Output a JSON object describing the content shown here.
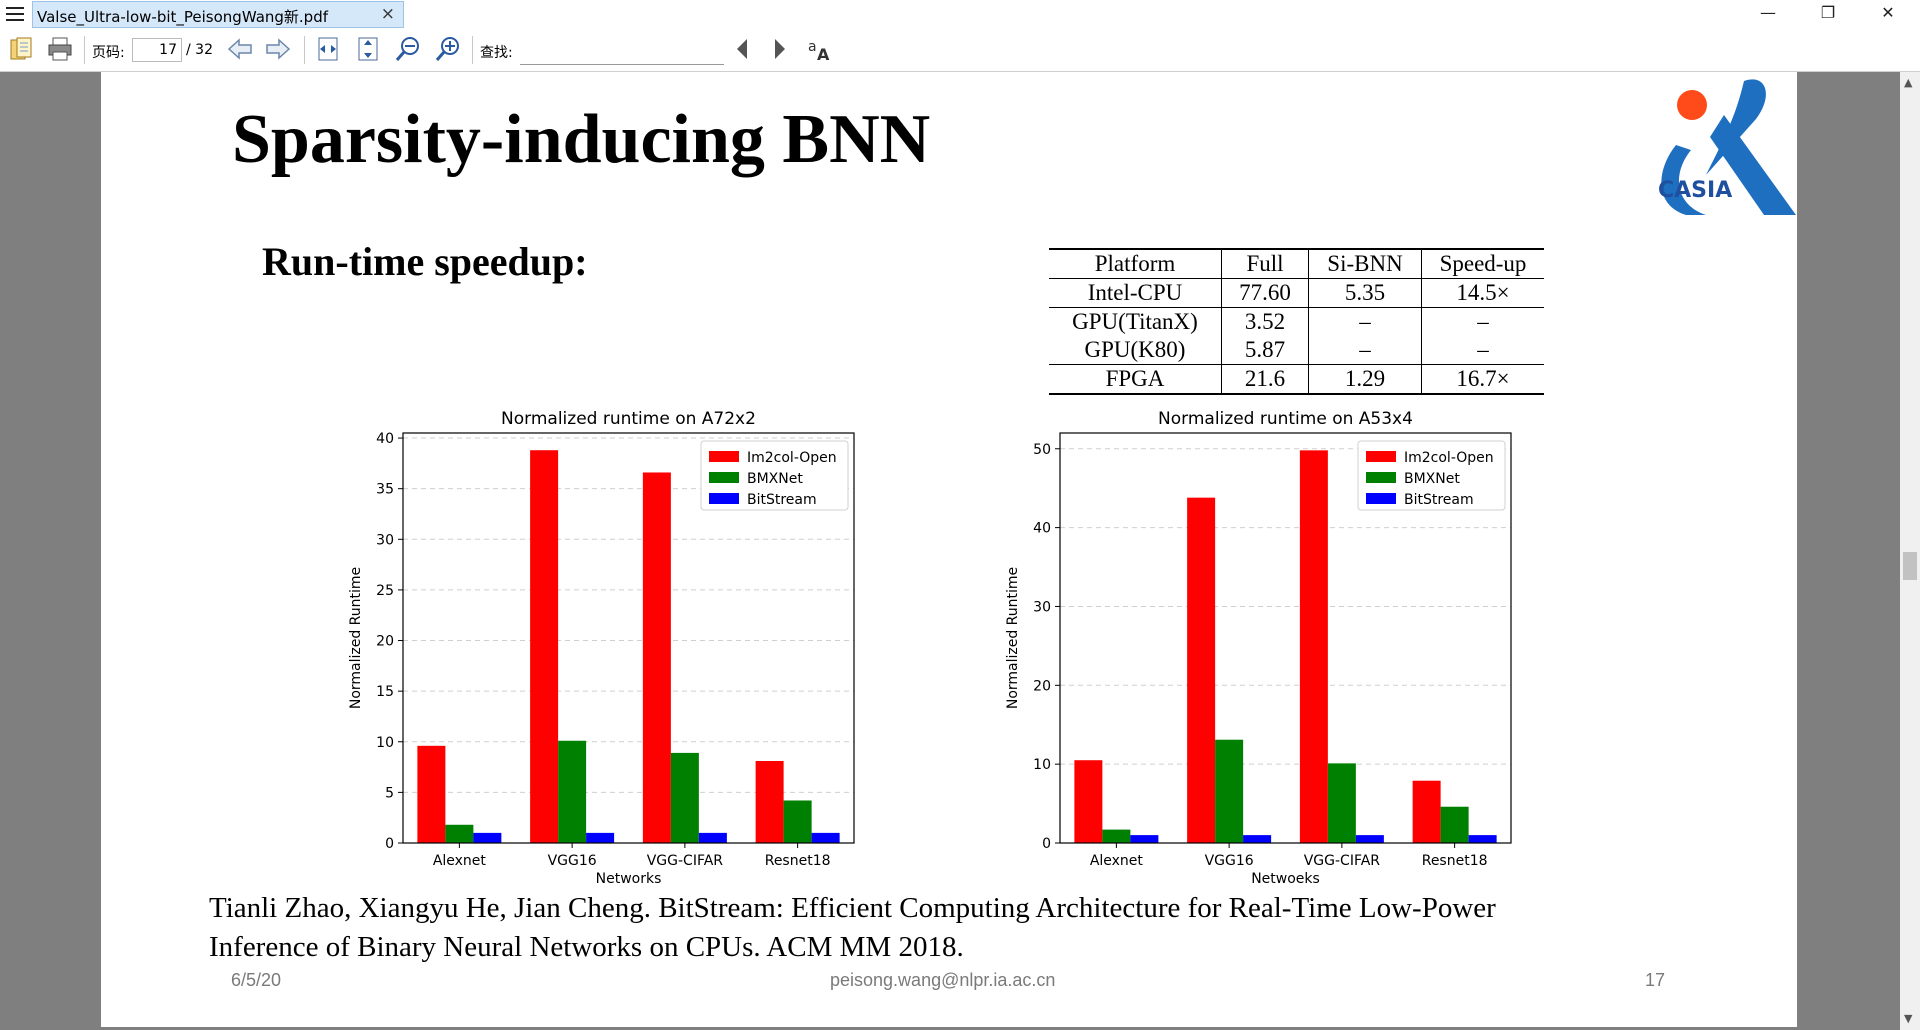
{
  "window": {
    "tab_title": "Valse_Ultra-low-bit_PeisongWang新.pdf",
    "tab_close": "×",
    "minimize": "—",
    "restore": "❐",
    "close": "✕"
  },
  "toolbar": {
    "page_label": "页码:",
    "page_current": "17",
    "page_total": "/ 32",
    "find_label": "查找:",
    "find_placeholder": "",
    "icons": [
      "open-icon",
      "print-icon",
      "back-icon",
      "forward-icon",
      "fit-width-icon",
      "fit-page-icon",
      "zoom-out-icon",
      "zoom-in-icon",
      "find-prev-icon",
      "find-next-icon",
      "translate-icon"
    ]
  },
  "slide": {
    "title": "Sparsity-inducing BNN",
    "subtitle": "Run-time speedup:",
    "logo_text": "CASIA",
    "table": {
      "headers": [
        "Platform",
        "Full",
        "Si-BNN",
        "Speed-up"
      ],
      "rows": [
        [
          "Intel-CPU",
          "77.60",
          "5.35",
          "14.5×"
        ],
        [
          "GPU(TitanX)",
          "3.52",
          "–",
          "–"
        ],
        [
          "GPU(K80)",
          "5.87",
          "–",
          "–"
        ],
        [
          "FPGA",
          "21.6",
          "1.29",
          "16.7×"
        ]
      ]
    },
    "citation_line1": "Tianli Zhao, Xiangyu He, Jian Cheng. BitStream: Efficient Computing Architecture for Real-Time Low-Power",
    "citation_line2": "Inference of Binary Neural Networks on CPUs. ACM MM 2018.",
    "footer_date": "6/5/20",
    "footer_email": "peisong.wang@nlpr.ia.ac.cn",
    "footer_page": "17"
  },
  "colors": {
    "im2col": "#ff0000",
    "bmxnet": "#008000",
    "bitstream": "#0000ff"
  },
  "chart_data": [
    {
      "type": "bar",
      "title": "Normalized runtime on A72x2",
      "xlabel": "Networks",
      "ylabel": "Normalized Runtime",
      "categories": [
        "Alexnet",
        "VGG16",
        "VGG-CIFAR",
        "Resnet18"
      ],
      "ylim": [
        0,
        40.5
      ],
      "yticks": [
        0,
        5,
        10,
        15,
        20,
        25,
        30,
        35,
        40
      ],
      "grid": true,
      "legend": "top-right",
      "series": [
        {
          "name": "Im2col-Open",
          "values": [
            9.6,
            38.8,
            36.6,
            8.1
          ]
        },
        {
          "name": "BMXNet",
          "values": [
            1.8,
            10.1,
            8.9,
            4.2
          ]
        },
        {
          "name": "BitStream",
          "values": [
            1.0,
            1.0,
            1.0,
            1.0
          ]
        }
      ]
    },
    {
      "type": "bar",
      "title": "Normalized runtime on A53x4",
      "xlabel": "Netwoeks",
      "ylabel": "Normalized Runtime",
      "categories": [
        "Alexnet",
        "VGG16",
        "VGG-CIFAR",
        "Resnet18"
      ],
      "ylim": [
        0,
        52
      ],
      "yticks": [
        0,
        10,
        20,
        30,
        40,
        50
      ],
      "grid": true,
      "legend": "top-right",
      "series": [
        {
          "name": "Im2col-Open",
          "values": [
            10.5,
            43.8,
            49.8,
            7.9
          ]
        },
        {
          "name": "BMXNet",
          "values": [
            1.7,
            13.1,
            10.1,
            4.6
          ]
        },
        {
          "name": "BitStream",
          "values": [
            1.0,
            1.0,
            1.0,
            1.0
          ]
        }
      ]
    }
  ]
}
